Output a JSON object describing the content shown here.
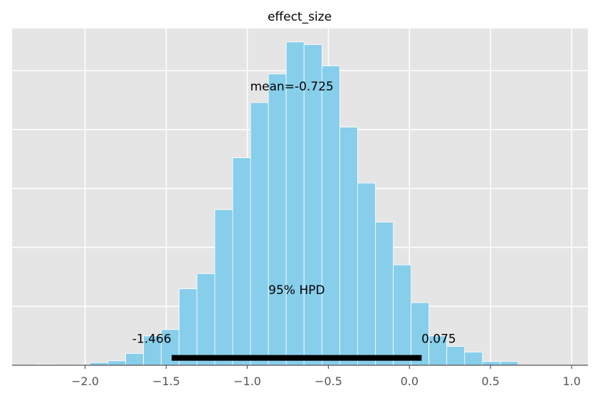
{
  "chart_data": {
    "type": "bar",
    "title": "effect_size",
    "xlabel": "",
    "ylabel": "",
    "xlim": [
      -2.45,
      1.1
    ],
    "ylim": [
      0,
      1.0
    ],
    "grid": true,
    "x_ticks": [
      -2.0,
      -1.5,
      -1.0,
      -0.5,
      0.0,
      0.5,
      1.0
    ],
    "x_tick_labels": [
      "−2.0",
      "−1.5",
      "−1.0",
      "−0.5",
      "0.0",
      "0.5",
      "1.0"
    ],
    "y_ticks": [
      0.175,
      0.35,
      0.525,
      0.7,
      0.875
    ],
    "bins": [
      {
        "x0": -2.3,
        "x1": -2.19,
        "value": 0.002
      },
      {
        "x0": -2.19,
        "x1": -2.08,
        "value": 0.001
      },
      {
        "x0": -2.08,
        "x1": -1.97,
        "value": 0.001
      },
      {
        "x0": -1.97,
        "x1": -1.86,
        "value": 0.008
      },
      {
        "x0": -1.86,
        "x1": -1.75,
        "value": 0.013
      },
      {
        "x0": -1.75,
        "x1": -1.64,
        "value": 0.035
      },
      {
        "x0": -1.64,
        "x1": -1.53,
        "value": 0.087
      },
      {
        "x0": -1.53,
        "x1": -1.42,
        "value": 0.106
      },
      {
        "x0": -1.42,
        "x1": -1.31,
        "value": 0.227
      },
      {
        "x0": -1.31,
        "x1": -1.2,
        "value": 0.272
      },
      {
        "x0": -1.2,
        "x1": -1.09,
        "value": 0.462
      },
      {
        "x0": -1.09,
        "x1": -0.98,
        "value": 0.616
      },
      {
        "x0": -0.98,
        "x1": -0.87,
        "value": 0.78
      },
      {
        "x0": -0.87,
        "x1": -0.76,
        "value": 0.865
      },
      {
        "x0": -0.76,
        "x1": -0.65,
        "value": 0.96
      },
      {
        "x0": -0.65,
        "x1": -0.54,
        "value": 0.952
      },
      {
        "x0": -0.54,
        "x1": -0.43,
        "value": 0.889
      },
      {
        "x0": -0.43,
        "x1": -0.32,
        "value": 0.707
      },
      {
        "x0": -0.32,
        "x1": -0.21,
        "value": 0.541
      },
      {
        "x0": -0.21,
        "x1": -0.1,
        "value": 0.425
      },
      {
        "x0": -0.1,
        "x1": 0.01,
        "value": 0.298
      },
      {
        "x0": 0.01,
        "x1": 0.12,
        "value": 0.186
      },
      {
        "x0": 0.12,
        "x1": 0.23,
        "value": 0.087
      },
      {
        "x0": 0.23,
        "x1": 0.34,
        "value": 0.056
      },
      {
        "x0": 0.34,
        "x1": 0.45,
        "value": 0.039
      },
      {
        "x0": 0.45,
        "x1": 0.56,
        "value": 0.011
      },
      {
        "x0": 0.56,
        "x1": 0.67,
        "value": 0.011
      }
    ],
    "mean": -0.725,
    "mean_label": "mean=-0.725",
    "hpd": {
      "label": "95% HPD",
      "low": -1.466,
      "high": 0.075,
      "low_label": "-1.466",
      "high_label": "0.075",
      "y": 0.022
    },
    "colors": {
      "bar_fill": "#87ceeb",
      "bar_edge": "#ffffff",
      "plot_bg": "#e5e5e5",
      "grid": "#ffffff",
      "hpd_line": "#000000",
      "axis": "#555555"
    }
  }
}
